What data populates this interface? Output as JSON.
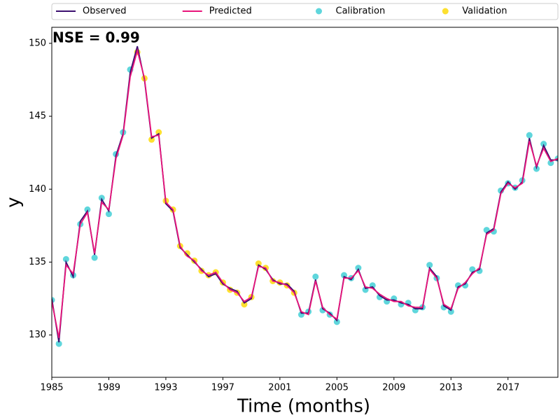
{
  "chart_data": {
    "type": "line",
    "annotation": "NSE = 0.99",
    "xlabel": "Time (months)",
    "ylabel": "y",
    "xlim": [
      1985,
      2020.5
    ],
    "ylim": [
      127.1,
      151.1
    ],
    "xticks": [
      1985,
      1989,
      1993,
      1997,
      2001,
      2005,
      2009,
      2013,
      2017
    ],
    "yticks": [
      130,
      135,
      140,
      145,
      150
    ],
    "legend": "top",
    "x": [
      1985,
      1985.5,
      1986,
      1986.5,
      1987,
      1987.5,
      1988,
      1988.5,
      1989,
      1989.5,
      1990,
      1990.5,
      1991,
      1991.5,
      1992,
      1992.5,
      1993,
      1993.5,
      1994,
      1994.5,
      1995,
      1995.5,
      1996,
      1996.5,
      1997,
      1997.5,
      1998,
      1998.5,
      1999,
      1999.5,
      2000,
      2000.5,
      2001,
      2001.5,
      2002,
      2002.5,
      2003,
      2003.5,
      2004,
      2004.5,
      2005,
      2005.5,
      2006,
      2006.5,
      2007,
      2007.5,
      2008,
      2008.5,
      2009,
      2009.5,
      2010,
      2010.5,
      2011,
      2011.5,
      2012,
      2012.5,
      2013,
      2013.5,
      2014,
      2014.5,
      2015,
      2015.5,
      2016,
      2016.5,
      2017,
      2017.5,
      2018,
      2018.5,
      2019,
      2019.5,
      2020,
      2020.5
    ],
    "series": [
      {
        "name": "Observed",
        "type": "line",
        "color": "#3b0f6f",
        "values": [
          132.5,
          129.5,
          135,
          134,
          137.8,
          138.5,
          135.5,
          139.3,
          138.5,
          142.3,
          143.8,
          148,
          149.8,
          147.5,
          143.5,
          143.8,
          139,
          138.5,
          136,
          135.5,
          135,
          134.5,
          134,
          134.2,
          133.5,
          133.2,
          133,
          132.2,
          132.5,
          134.8,
          134.5,
          133.8,
          133.5,
          133.5,
          133,
          131.5,
          131.5,
          133.8,
          131.8,
          131.5,
          131,
          134,
          133.8,
          134.5,
          133.2,
          133.3,
          132.7,
          132.4,
          132.4,
          132.2,
          132.1,
          131.8,
          131.8,
          134.6,
          134,
          132,
          131.7,
          133.3,
          133.5,
          134.3,
          134.5,
          137,
          137.3,
          139.8,
          140.5,
          140,
          140.5,
          143.5,
          141.5,
          143,
          142,
          142
        ]
      },
      {
        "name": "Predicted",
        "type": "line",
        "color": "#e8147a",
        "values": [
          132.3,
          129.8,
          134.8,
          134.2,
          137.6,
          138.4,
          135.6,
          139.1,
          138.6,
          142.1,
          143.7,
          147.7,
          149.5,
          147.6,
          143.6,
          143.7,
          139.1,
          138.6,
          136.1,
          135.4,
          135.1,
          134.4,
          134.1,
          134.3,
          133.6,
          133.1,
          132.9,
          132.3,
          132.6,
          134.7,
          134.6,
          133.7,
          133.6,
          133.4,
          132.9,
          131.6,
          131.4,
          133.7,
          131.9,
          131.4,
          131.1,
          133.9,
          133.9,
          134.4,
          133.3,
          133.2,
          132.8,
          132.5,
          132.3,
          132.3,
          132,
          131.9,
          131.9,
          134.5,
          133.9,
          132.1,
          131.8,
          133.2,
          133.6,
          134.2,
          134.6,
          136.9,
          137.2,
          139.7,
          140.4,
          140.1,
          140.4,
          143.3,
          141.6,
          142.8,
          141.9,
          142.1
        ]
      },
      {
        "name": "Calibration",
        "type": "scatter",
        "color": "#5fd6dc",
        "x": [
          1985,
          1985.5,
          1986,
          1986.5,
          1987,
          1987.5,
          1988,
          1988.5,
          1989,
          1989.5,
          1990,
          1990.5,
          2002.5,
          2003,
          2003.5,
          2004,
          2004.5,
          2005,
          2005.5,
          2006,
          2006.5,
          2007,
          2007.5,
          2008,
          2008.5,
          2009,
          2009.5,
          2010,
          2010.5,
          2011,
          2011.5,
          2012,
          2012.5,
          2013,
          2013.5,
          2014,
          2014.5,
          2015,
          2015.5,
          2016,
          2016.5,
          2017,
          2017.5,
          2018,
          2018.5,
          2019,
          2019.5,
          2020,
          2020.5
        ],
        "values": [
          132.4,
          129.4,
          135.2,
          134.1,
          137.6,
          138.6,
          135.3,
          139.4,
          138.3,
          142.4,
          143.9,
          148.2,
          131.4,
          131.6,
          134,
          131.7,
          131.4,
          130.9,
          134.1,
          133.9,
          134.6,
          133.1,
          133.4,
          132.6,
          132.3,
          132.5,
          132.1,
          132.2,
          131.7,
          131.9,
          134.8,
          133.9,
          131.9,
          131.6,
          133.4,
          133.4,
          134.5,
          134.4,
          137.2,
          137.1,
          139.9,
          140.4,
          140.1,
          140.6,
          143.7,
          141.4,
          143.1,
          141.8,
          142.1
        ]
      },
      {
        "name": "Validation",
        "type": "scatter",
        "color": "#fde030",
        "x": [
          1991,
          1991.5,
          1992,
          1992.5,
          1993,
          1993.5,
          1994,
          1994.5,
          1995,
          1995.5,
          1996,
          1996.5,
          1997,
          1997.5,
          1998,
          1998.5,
          1999,
          1999.5,
          2000,
          2000.5,
          2001,
          2001.5,
          2002
        ],
        "values": [
          149.4,
          147.6,
          143.4,
          143.9,
          139.2,
          138.6,
          136.1,
          135.6,
          135.1,
          134.4,
          134.1,
          134.3,
          133.6,
          133.1,
          132.9,
          132.1,
          132.6,
          134.9,
          134.6,
          133.7,
          133.6,
          133.4,
          132.9
        ]
      }
    ]
  }
}
